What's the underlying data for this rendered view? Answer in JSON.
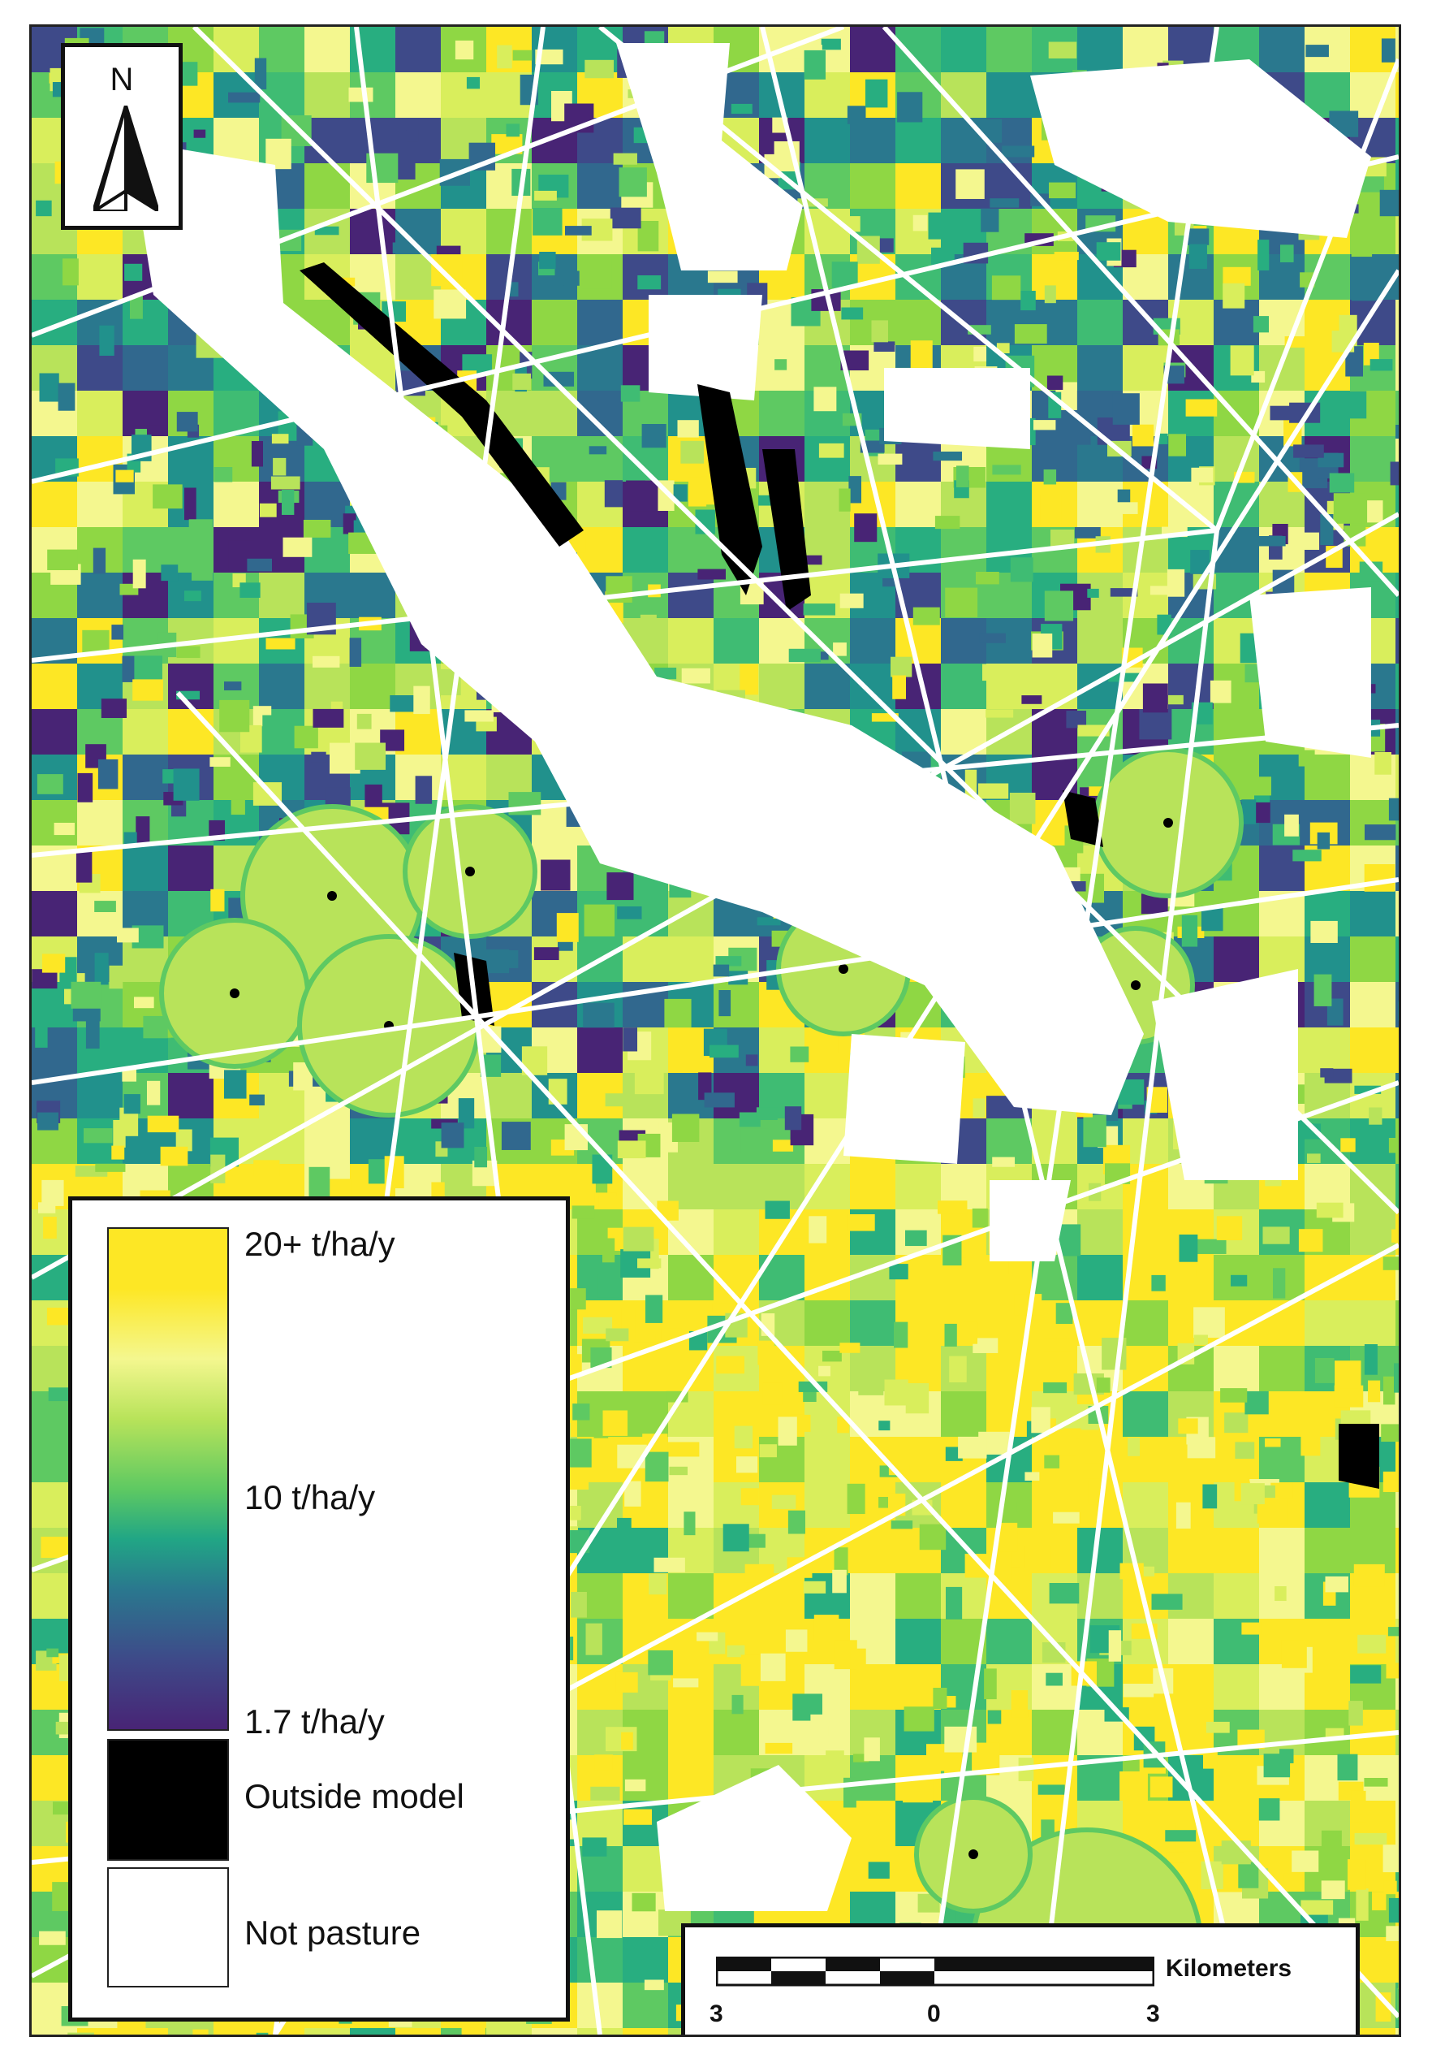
{
  "map": {
    "palette": [
      "#fde725",
      "#f4f78f",
      "#d9ee5c",
      "#b8e35a",
      "#8fd744",
      "#5ec962",
      "#3fbc73",
      "#28ae80",
      "#21918c",
      "#2a788e",
      "#31688e",
      "#3e4a89",
      "#482475"
    ],
    "road_color": "#ffffff",
    "not_pasture_color": "#ffffff",
    "outside_color": "#000000",
    "north_arrow": {
      "letter": "N"
    },
    "legend": {
      "ramp_top_label": "20+ t/ha/y",
      "ramp_mid_label": "10 t/ha/y",
      "ramp_bottom_label": "1.7 t/ha/y",
      "outside_label": "Outside model",
      "not_pasture_label": "Not pasture"
    },
    "scalebar": {
      "units": "Kilometers",
      "tick_left": "3",
      "tick_mid": "0",
      "tick_right": "3"
    }
  }
}
